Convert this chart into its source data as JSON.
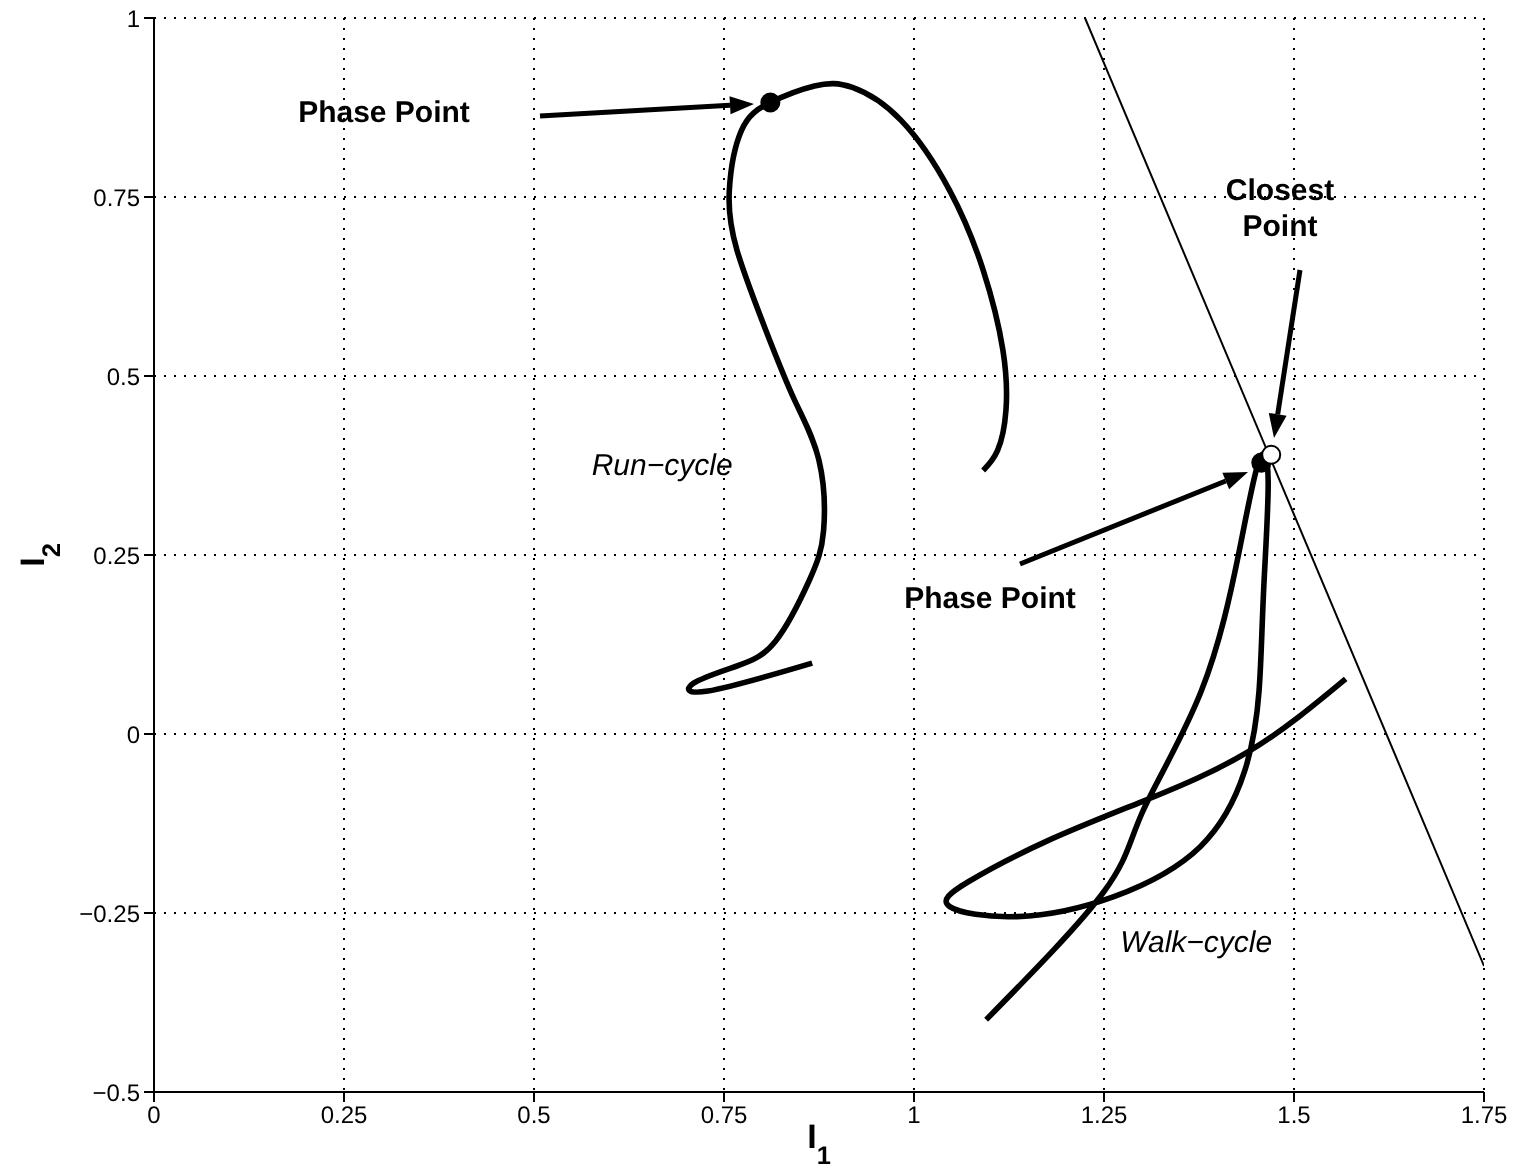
{
  "chart_data": {
    "type": "line",
    "xlabel": "I$_{1}$",
    "ylabel": "I$_{2}$",
    "xlim": [
      0,
      1.75
    ],
    "ylim": [
      -0.5,
      1
    ],
    "xticks": [
      0,
      0.25,
      0.5,
      0.75,
      1,
      1.25,
      1.5,
      1.75
    ],
    "yticks": [
      -0.5,
      -0.25,
      0,
      0.25,
      0.5,
      0.75,
      1
    ],
    "grid": true,
    "legend": false,
    "line_style": "solid",
    "marker": "none",
    "series": [
      {
        "name": "Run−cycle",
        "color": "#000000",
        "x": [
          0.866,
          0.729,
          0.71,
          0.767,
          0.818,
          0.862,
          0.881,
          0.875,
          0.843,
          0.805,
          0.767,
          0.757,
          0.773,
          0.811,
          0.869,
          0.919,
          0.983,
          1.047,
          1.091,
          1.117,
          1.121,
          1.11,
          1.091
        ],
        "values": [
          0.099,
          0.06,
          0.071,
          0.095,
          0.13,
          0.214,
          0.284,
          0.382,
          0.466,
          0.564,
          0.676,
          0.759,
          0.843,
          0.882,
          0.905,
          0.903,
          0.857,
          0.759,
          0.648,
          0.536,
          0.452,
          0.396,
          0.368
        ]
      },
      {
        "name": "Walk−cycle",
        "color": "#000000",
        "x": [
          1.095,
          1.25,
          1.301,
          1.378,
          1.428,
          1.454,
          1.466,
          1.46,
          1.454,
          1.435,
          1.377,
          1.263,
          1.136,
          1.047,
          1.072,
          1.174,
          1.301,
          1.441,
          1.568
        ],
        "values": [
          -0.399,
          -0.22,
          -0.108,
          0.06,
          0.256,
          0.382,
          0.354,
          0.2,
          0.06,
          -0.052,
          -0.157,
          -0.227,
          -0.255,
          -0.241,
          -0.206,
          -0.15,
          -0.094,
          -0.024,
          0.077
        ]
      },
      {
        "color": "#000000",
        "x": [
          1.225,
          1.75
        ],
        "values": [
          1,
          -0.324
        ]
      },
      {
        "type": "scatter",
        "color": "#000000",
        "marker": "circle",
        "x": [
          0.811,
          1.457
        ],
        "values": [
          0.882,
          0.379
        ]
      },
      {
        "type": "scatter",
        "color": "#ffffff",
        "marker": "circle",
        "x": [
          1.47
        ],
        "values": [
          0.39
        ]
      }
    ],
    "annotations": [
      "Phase Point",
      "Phase Point",
      "Closest Point"
    ]
  }
}
